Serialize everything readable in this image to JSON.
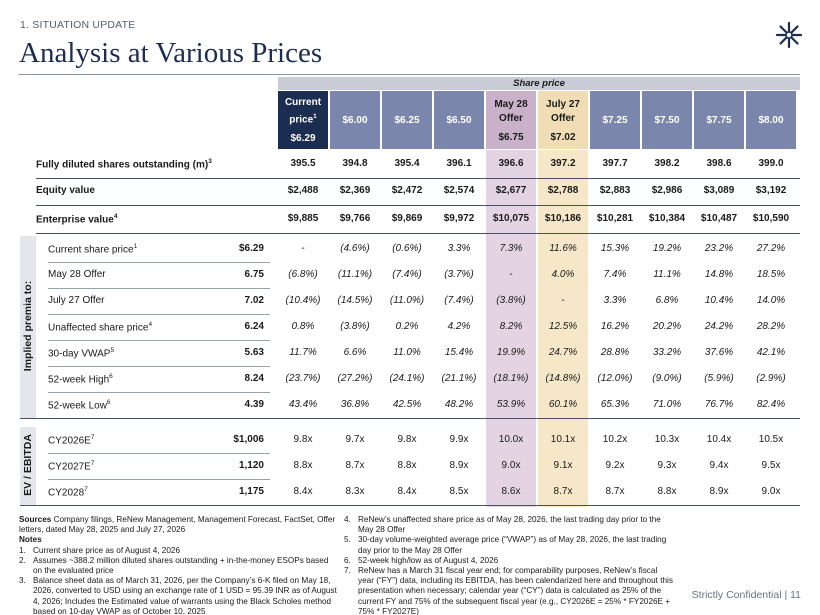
{
  "header": {
    "section": "1. SITUATION UPDATE",
    "title": "Analysis at Various Prices",
    "logo_icon": "asterisk-logo-icon"
  },
  "share_price_header": "Share price",
  "columns": [
    {
      "label": "Current price",
      "sup": "1",
      "price": "$6.29",
      "style": "current"
    },
    {
      "label": "",
      "sup": "",
      "price": "$6.00",
      "style": "blue"
    },
    {
      "label": "",
      "sup": "",
      "price": "$6.25",
      "style": "blue"
    },
    {
      "label": "",
      "sup": "",
      "price": "$6.50",
      "style": "blue"
    },
    {
      "label": "May 28 Offer",
      "sup": "",
      "price": "$6.75",
      "style": "may"
    },
    {
      "label": "July 27 Offer",
      "sup": "",
      "price": "$7.02",
      "style": "july"
    },
    {
      "label": "",
      "sup": "",
      "price": "$7.25",
      "style": "blue"
    },
    {
      "label": "",
      "sup": "",
      "price": "$7.50",
      "style": "blue"
    },
    {
      "label": "",
      "sup": "",
      "price": "$7.75",
      "style": "blue"
    },
    {
      "label": "",
      "sup": "",
      "price": "$8.00",
      "style": "blue"
    }
  ],
  "summary_rows": [
    {
      "label": "Fully diluted shares outstanding (m)",
      "sup": "3",
      "values": [
        "395.5",
        "394.8",
        "395.4",
        "396.1",
        "396.6",
        "397.2",
        "397.7",
        "398.2",
        "398.6",
        "399.0"
      ]
    },
    {
      "label": "Equity value",
      "sup": "",
      "values": [
        "$2,488",
        "$2,369",
        "$2,472",
        "$2,574",
        "$2,677",
        "$2,788",
        "$2,883",
        "$2,986",
        "$3,089",
        "$3,192"
      ]
    },
    {
      "label": "Enterprise value",
      "sup": "4",
      "values": [
        "$9,885",
        "$9,766",
        "$9,869",
        "$9,972",
        "$10,075",
        "$10,186",
        "$10,281",
        "$10,384",
        "$10,487",
        "$10,590"
      ]
    }
  ],
  "premia": {
    "side_label": "Implied premia to:",
    "rows": [
      {
        "label": "Current share price",
        "sup": "1",
        "base": "$6.29",
        "values": [
          "-",
          "(4.6%)",
          "(0.6%)",
          "3.3%",
          "7.3%",
          "11.6%",
          "15.3%",
          "19.2%",
          "23.2%",
          "27.2%"
        ]
      },
      {
        "label": "May 28 Offer",
        "sup": "",
        "base": "6.75",
        "values": [
          "(6.8%)",
          "(11.1%)",
          "(7.4%)",
          "(3.7%)",
          "-",
          "4.0%",
          "7.4%",
          "11.1%",
          "14.8%",
          "18.5%"
        ]
      },
      {
        "label": "July 27 Offer",
        "sup": "",
        "base": "7.02",
        "values": [
          "(10.4%)",
          "(14.5%)",
          "(11.0%)",
          "(7.4%)",
          "(3.8%)",
          "-",
          "3.3%",
          "6.8%",
          "10.4%",
          "14.0%"
        ]
      },
      {
        "label": "Unaffected share price",
        "sup": "4",
        "base": "6.24",
        "values": [
          "0.8%",
          "(3.8%)",
          "0.2%",
          "4.2%",
          "8.2%",
          "12.5%",
          "16.2%",
          "20.2%",
          "24.2%",
          "28.2%"
        ]
      },
      {
        "label": "30-day VWAP",
        "sup": "5",
        "base": "5.63",
        "values": [
          "11.7%",
          "6.6%",
          "11.0%",
          "15.4%",
          "19.9%",
          "24.7%",
          "28.8%",
          "33.2%",
          "37.6%",
          "42.1%"
        ]
      },
      {
        "label": "52-week High",
        "sup": "6",
        "base": "8.24",
        "values": [
          "(23.7%)",
          "(27.2%)",
          "(24.1%)",
          "(21.1%)",
          "(18.1%)",
          "(14.8%)",
          "(12.0%)",
          "(9.0%)",
          "(5.9%)",
          "(2.9%)"
        ]
      },
      {
        "label": "52-week Low",
        "sup": "6",
        "base": "4.39",
        "values": [
          "43.4%",
          "36.8%",
          "42.5%",
          "48.2%",
          "53.9%",
          "60.1%",
          "65.3%",
          "71.0%",
          "76.7%",
          "82.4%"
        ]
      }
    ]
  },
  "ev_ebitda": {
    "side_label": "EV / EBITDA",
    "rows": [
      {
        "label": "CY2026E",
        "sup": "7",
        "base": "$1,006",
        "values": [
          "9.8x",
          "9.7x",
          "9.8x",
          "9.9x",
          "10.0x",
          "10.1x",
          "10.2x",
          "10.3x",
          "10.4x",
          "10.5x"
        ]
      },
      {
        "label": "CY2027E",
        "sup": "7",
        "base": "1,120",
        "values": [
          "8.8x",
          "8.7x",
          "8.8x",
          "8.9x",
          "9.0x",
          "9.1x",
          "9.2x",
          "9.3x",
          "9.4x",
          "9.5x"
        ]
      },
      {
        "label": "CY2028",
        "sup": "7",
        "base": "1,175",
        "values": [
          "8.4x",
          "8.3x",
          "8.4x",
          "8.5x",
          "8.6x",
          "8.7x",
          "8.7x",
          "8.8x",
          "8.9x",
          "9.0x"
        ]
      }
    ]
  },
  "notes": {
    "sources_label": "Sources",
    "sources_text": " Company filings, ReNew Management, Management Forecast, FactSet, Offer letters, dated May 28, 2025 and July 27, 2026",
    "notes_label": "Notes",
    "left_items": [
      {
        "n": "1.",
        "text": "Current share price as of August 4, 2026"
      },
      {
        "n": "2.",
        "text": "Assumes ~388.2 million diluted shares outstanding + in-the-money ESOPs based on the evaluated price"
      },
      {
        "n": "3.",
        "text": "Balance sheet data as of March 31, 2026, per the Company’s 6-K filed on May 18, 2026, converted to USD using an exchange rate of 1 USD = 95.39 INR as of August 4, 2026; Includes the Estimated value of warrants using the Black Scholes method based on 10-day VWAP as of October 10, 2025"
      }
    ],
    "right_items": [
      {
        "n": "4.",
        "text": "ReNew’s unaffected share price as of May 28, 2026, the last trading day prior to the May 28 Offer"
      },
      {
        "n": "5.",
        "text": "30-day volume-weighted average price (“VWAP”) as of May 28, 2026, the last trading day prior to the May 28 Offer"
      },
      {
        "n": "6.",
        "text": "52-week high/low as of August 4, 2026"
      },
      {
        "n": "7.",
        "text": "ReNew has a March 31 fiscal year end; for comparability purposes, ReNew’s fiscal year (“FY”) data, including its EBITDA, has been calendarized here and throughout this presentation when necessary; calendar year (“CY”) data is calculated as 25% of the current FY and 75% of the subsequent fiscal year (e.g., CY2026E = 25% * FY2026E + 75% * FY2027E)"
      }
    ]
  },
  "footer": "Strictly Confidential | 11",
  "colors": {
    "navy": "#1c2d52",
    "blue_col": "#7b86ad",
    "may_col": "#c9b2c9",
    "may_col_light": "#e3d3e3",
    "july_col": "#f0ddb6",
    "july_col_light": "#f6e7c9"
  }
}
